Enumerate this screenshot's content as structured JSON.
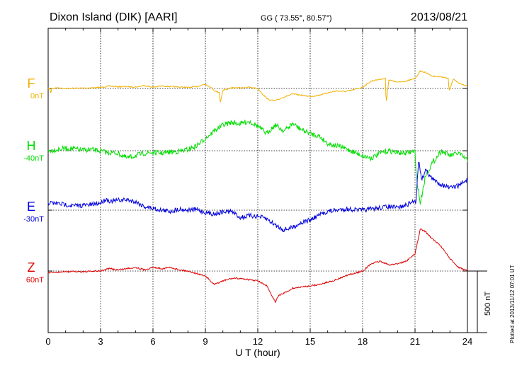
{
  "header": {
    "station": "Dixon Island (DIK)  [AARI]",
    "coords": "GG ( 73.55°,  80.57°)",
    "date": "2013/08/21"
  },
  "footer": {
    "plotted": "Plotted at 2013/11/12 07:01  UT"
  },
  "chart_data": {
    "type": "line",
    "title": "",
    "xlabel": "U T (hour)",
    "xlim": [
      0,
      24
    ],
    "xticks": [
      0,
      3,
      6,
      9,
      12,
      15,
      18,
      21,
      24
    ],
    "xtick_labels": [
      "0",
      "3",
      "6",
      "9",
      "12",
      "15",
      "18",
      "21",
      "24"
    ],
    "grid": true,
    "scale_bar": {
      "label": "500 nT",
      "nT": 500
    },
    "series": [
      {
        "name": "F",
        "baseline": "0nT",
        "color": "#f0b000",
        "x": [
          0,
          0.1,
          0.15,
          0.2,
          0.5,
          1,
          2,
          3,
          3.5,
          4,
          4.5,
          5,
          5.5,
          6,
          6.5,
          7,
          7.5,
          8,
          8.5,
          9,
          9.3,
          9.6,
          9.8,
          9.85,
          10,
          10.5,
          11,
          11.5,
          12,
          12.3,
          12.6,
          13,
          13.5,
          14,
          14.5,
          15,
          15.5,
          16,
          16.5,
          17,
          17.5,
          18,
          18.5,
          19,
          19.3,
          19.35,
          19.5,
          20,
          20.5,
          21,
          21.3,
          21.6,
          22,
          22.5,
          22.9,
          22.95,
          23.2,
          23.5,
          24
        ],
        "y": [
          0,
          0,
          -45,
          0,
          5,
          0,
          3,
          8,
          20,
          14,
          15,
          12,
          24,
          10,
          20,
          15,
          12,
          8,
          15,
          35,
          10,
          -25,
          -30,
          -120,
          -15,
          5,
          5,
          10,
          0,
          -50,
          -90,
          -100,
          -70,
          -45,
          -55,
          -65,
          -55,
          -35,
          -20,
          -25,
          -10,
          10,
          60,
          75,
          80,
          -120,
          70,
          50,
          60,
          80,
          140,
          130,
          100,
          95,
          80,
          -20,
          80,
          40,
          20
        ]
      },
      {
        "name": "H",
        "baseline": "-40nT",
        "color": "#00dd00",
        "x": [
          0,
          0.5,
          1,
          1.5,
          2,
          2.5,
          3,
          3.5,
          4,
          4.5,
          5,
          5.5,
          6,
          6.5,
          7,
          7.5,
          8,
          8.5,
          9,
          9.5,
          10,
          10.5,
          11,
          11.5,
          12,
          12.5,
          13,
          13.5,
          14,
          14.5,
          15,
          15.5,
          16,
          16.5,
          17,
          17.5,
          18,
          18.5,
          19,
          19.5,
          20,
          20.5,
          21,
          21.05,
          21.3,
          21.6,
          22,
          22.5,
          23,
          23.5,
          24
        ],
        "y": [
          0,
          10,
          20,
          15,
          5,
          10,
          -5,
          -15,
          -20,
          -60,
          -40,
          -20,
          -15,
          -20,
          -10,
          -5,
          10,
          40,
          100,
          160,
          210,
          230,
          220,
          240,
          200,
          140,
          210,
          160,
          220,
          170,
          140,
          120,
          60,
          40,
          20,
          -10,
          -40,
          -60,
          -20,
          0,
          -15,
          -20,
          0,
          -180,
          -430,
          -200,
          -100,
          0,
          -40,
          -20,
          -80
        ]
      },
      {
        "name": "E",
        "baseline": "-30nT",
        "color": "#0000dd",
        "x": [
          0,
          0.5,
          1,
          1.5,
          2,
          2.5,
          3,
          3.3,
          3.6,
          4,
          4.5,
          5,
          5.5,
          6,
          6.5,
          7,
          7.5,
          8,
          8.5,
          9,
          9.5,
          10,
          10.5,
          11,
          11.5,
          12,
          12.5,
          13,
          13.5,
          14,
          14.5,
          15,
          15.5,
          16,
          16.5,
          17,
          17.5,
          18,
          18.5,
          19,
          19.5,
          20,
          20.5,
          21,
          21.05,
          21.2,
          21.4,
          21.6,
          22,
          22.5,
          23,
          23.5,
          24
        ],
        "y": [
          60,
          55,
          45,
          35,
          40,
          45,
          60,
          90,
          70,
          80,
          85,
          70,
          30,
          15,
          0,
          -10,
          10,
          0,
          5,
          -20,
          -30,
          -15,
          -10,
          -60,
          -45,
          -50,
          -70,
          -120,
          -160,
          -140,
          -100,
          -80,
          -40,
          -10,
          0,
          10,
          5,
          0,
          10,
          20,
          30,
          20,
          40,
          80,
          60,
          400,
          250,
          330,
          250,
          210,
          180,
          200,
          250
        ]
      },
      {
        "name": "Z",
        "baseline": "60nT",
        "color": "#dd0000",
        "x": [
          0,
          0.5,
          1,
          2,
          3,
          3.5,
          4,
          4.5,
          5,
          5.5,
          6,
          6.5,
          7,
          7.5,
          8,
          8.5,
          9,
          9.5,
          10,
          10.5,
          11,
          11.5,
          12,
          12.5,
          13,
          13.2,
          13.5,
          14,
          14.5,
          15,
          15.5,
          16,
          16.5,
          17,
          17.5,
          18,
          18.5,
          19,
          19.5,
          20,
          20.5,
          21,
          21.3,
          21.6,
          22,
          22.5,
          23,
          23.5,
          24
        ],
        "y": [
          -15,
          -10,
          -5,
          -5,
          0,
          20,
          10,
          20,
          30,
          10,
          30,
          20,
          30,
          10,
          0,
          -20,
          -40,
          -110,
          -80,
          -60,
          -60,
          -70,
          -80,
          -120,
          -250,
          -200,
          -180,
          -140,
          -130,
          -120,
          -110,
          -90,
          -70,
          -40,
          -20,
          0,
          60,
          80,
          50,
          60,
          80,
          140,
          340,
          320,
          260,
          200,
          100,
          30,
          0
        ]
      }
    ]
  }
}
